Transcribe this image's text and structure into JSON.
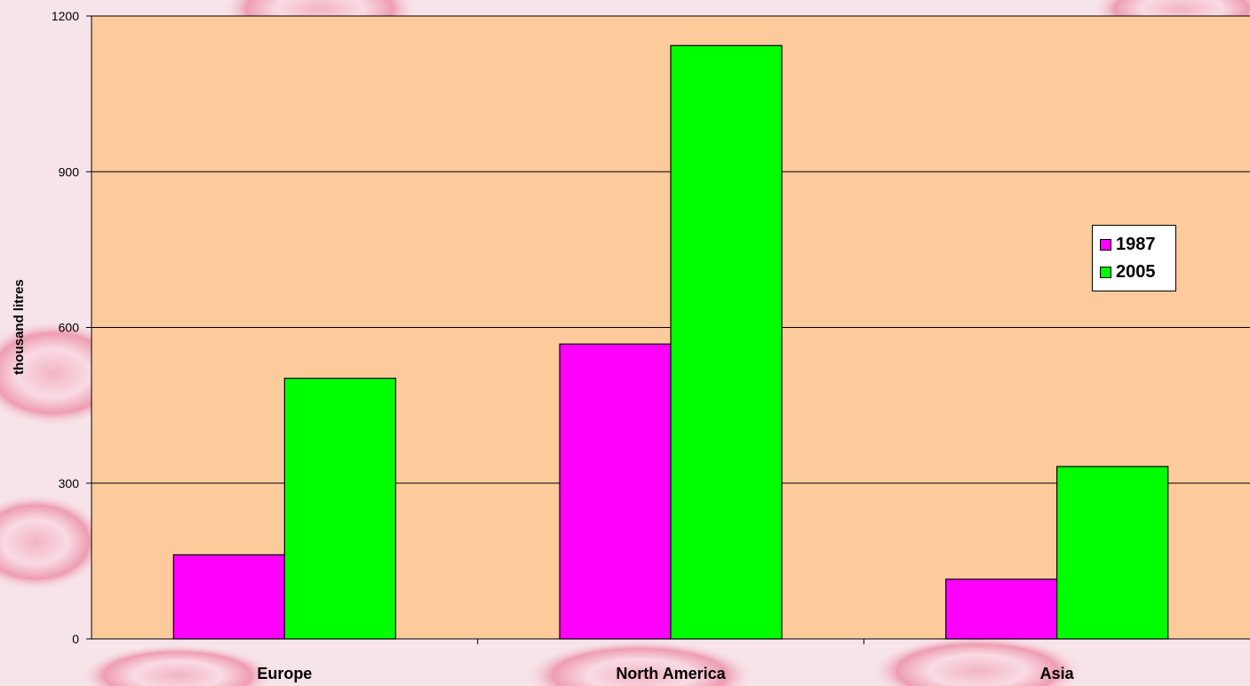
{
  "chart_data": {
    "type": "bar",
    "title": "",
    "xlabel": "",
    "ylabel": "thousand litres",
    "categories": [
      "Europe",
      "North America",
      "Asia"
    ],
    "series": [
      {
        "name": "1987",
        "color": "#ff00ff",
        "values": [
          162,
          568,
          115
        ]
      },
      {
        "name": "2005",
        "color": "#00ff00",
        "values": [
          502,
          1143,
          332
        ]
      }
    ],
    "ylim": [
      0,
      1200
    ],
    "yticks": [
      0,
      300,
      600,
      900,
      1200
    ],
    "grid": true,
    "legend_position": "right",
    "plot_background": "#fdcb9b"
  }
}
